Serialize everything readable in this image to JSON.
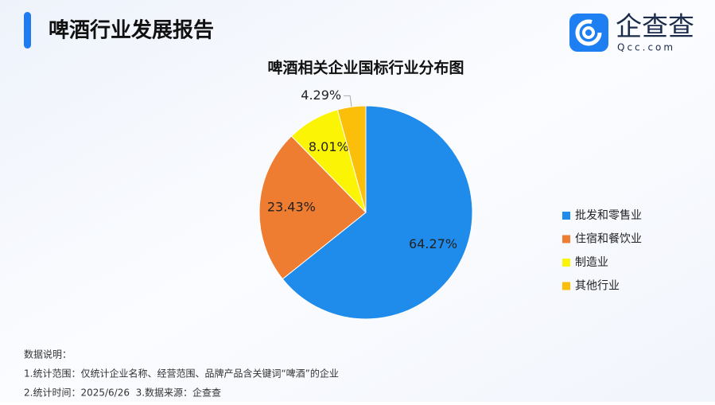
{
  "header": {
    "title": "啤酒行业发展报告",
    "logo": {
      "name": "企查查",
      "url": "Qcc.com"
    }
  },
  "chart_data": {
    "type": "pie",
    "title": "啤酒相关企业国标行业分布图",
    "categories": [
      "批发和零售业",
      "住宿和餐饮业",
      "制造业",
      "其他行业"
    ],
    "values": [
      64.27,
      23.43,
      8.01,
      4.29
    ],
    "value_labels": [
      "64.27%",
      "23.43%",
      "8.01%",
      "4.29%"
    ],
    "colors": [
      "#1f8ceb",
      "#ef7d31",
      "#fbf404",
      "#fbbf0a"
    ],
    "legend": "right"
  },
  "notes": {
    "title": "数据说明：",
    "lines": [
      "1.统计范围：仅统计企业名称、经营范围、品牌产品含关键词“啤酒”的企业",
      "2.统计时间：2025/6/26  3.数据来源：企查查"
    ]
  }
}
